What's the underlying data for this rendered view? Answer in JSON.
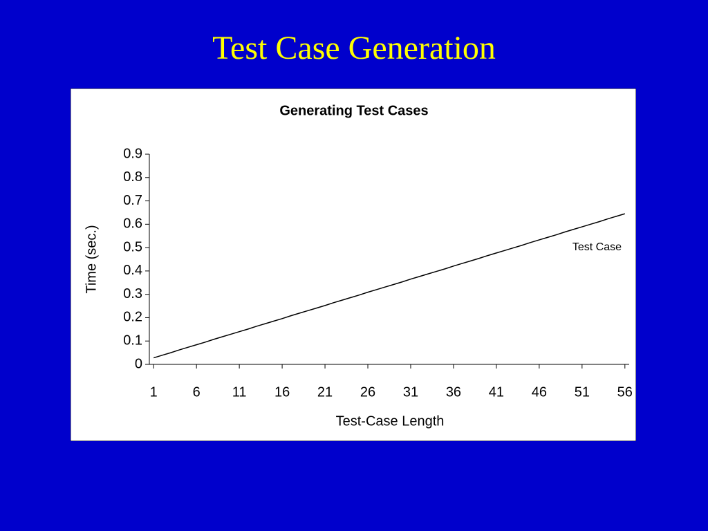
{
  "slide": {
    "title": "Test Case Generation"
  },
  "chart_data": {
    "type": "line",
    "title": "Generating Test Cases",
    "x_label": "Test-Case Length",
    "y_label": "Time (sec.)",
    "x": [
      1,
      2,
      3,
      4,
      5,
      6,
      7,
      8,
      9,
      10,
      11,
      12,
      13,
      14,
      15,
      16,
      17,
      18,
      19,
      20,
      21,
      22,
      23,
      24,
      25,
      26,
      27,
      28,
      29,
      30,
      31,
      32,
      33,
      34,
      35,
      36,
      37,
      38,
      39,
      40,
      41,
      42,
      43,
      44,
      45,
      46,
      47,
      48,
      49,
      50,
      51,
      52,
      53,
      54,
      55,
      56
    ],
    "series": [
      {
        "name": "Test Case",
        "color": "#000000",
        "values": [
          0.028,
          0.039,
          0.05,
          0.062,
          0.073,
          0.084,
          0.095,
          0.107,
          0.118,
          0.129,
          0.14,
          0.151,
          0.163,
          0.174,
          0.185,
          0.196,
          0.208,
          0.219,
          0.23,
          0.241,
          0.252,
          0.264,
          0.275,
          0.286,
          0.297,
          0.309,
          0.32,
          0.331,
          0.342,
          0.353,
          0.365,
          0.376,
          0.387,
          0.398,
          0.409,
          0.421,
          0.432,
          0.443,
          0.454,
          0.466,
          0.477,
          0.488,
          0.499,
          0.51,
          0.522,
          0.533,
          0.544,
          0.555,
          0.567,
          0.578,
          0.589,
          0.6,
          0.611,
          0.623,
          0.634,
          0.645
        ]
      }
    ],
    "xlim": [
      0.5,
      56.5
    ],
    "xticks": [
      1,
      6,
      11,
      16,
      21,
      26,
      31,
      36,
      41,
      46,
      51,
      56
    ],
    "ylim": [
      0,
      0.9
    ],
    "yticks": [
      0,
      0.1,
      0.2,
      0.3,
      0.4,
      0.5,
      0.6,
      0.7,
      0.8,
      0.9
    ],
    "grid": false
  }
}
